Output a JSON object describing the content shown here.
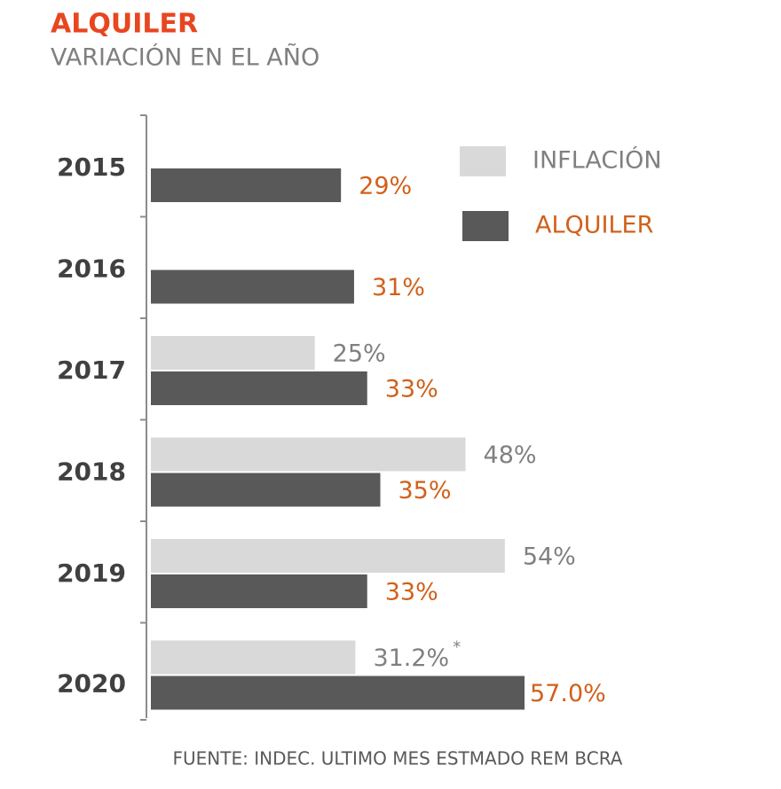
{
  "chart_data": {
    "type": "bar",
    "orientation": "horizontal",
    "title": "ALQUILER",
    "subtitle": "VARIACIÓN EN EL AÑO",
    "categories": [
      "2015",
      "2016",
      "2017",
      "2018",
      "2019",
      "2020"
    ],
    "series": [
      {
        "name": "INFLACIÓN",
        "color": "#d9d9d9",
        "label_color": "#808080",
        "values": [
          null,
          null,
          25,
          48,
          54,
          31.2
        ],
        "value_labels": [
          null,
          null,
          "25%",
          "48%",
          "54%",
          "31.2%"
        ]
      },
      {
        "name": "ALQUILER",
        "color": "#595959",
        "label_color": "#d2601a",
        "values": [
          29,
          31,
          33,
          35,
          33,
          57.0
        ],
        "value_labels": [
          "29%",
          "31%",
          "33%",
          "35%",
          "33%",
          "57.0%"
        ]
      }
    ],
    "annotation": "*",
    "note": "FUENTE: INDEC. ULTIMO MES ESTMADO REM BCRA",
    "legend": "top-right"
  }
}
